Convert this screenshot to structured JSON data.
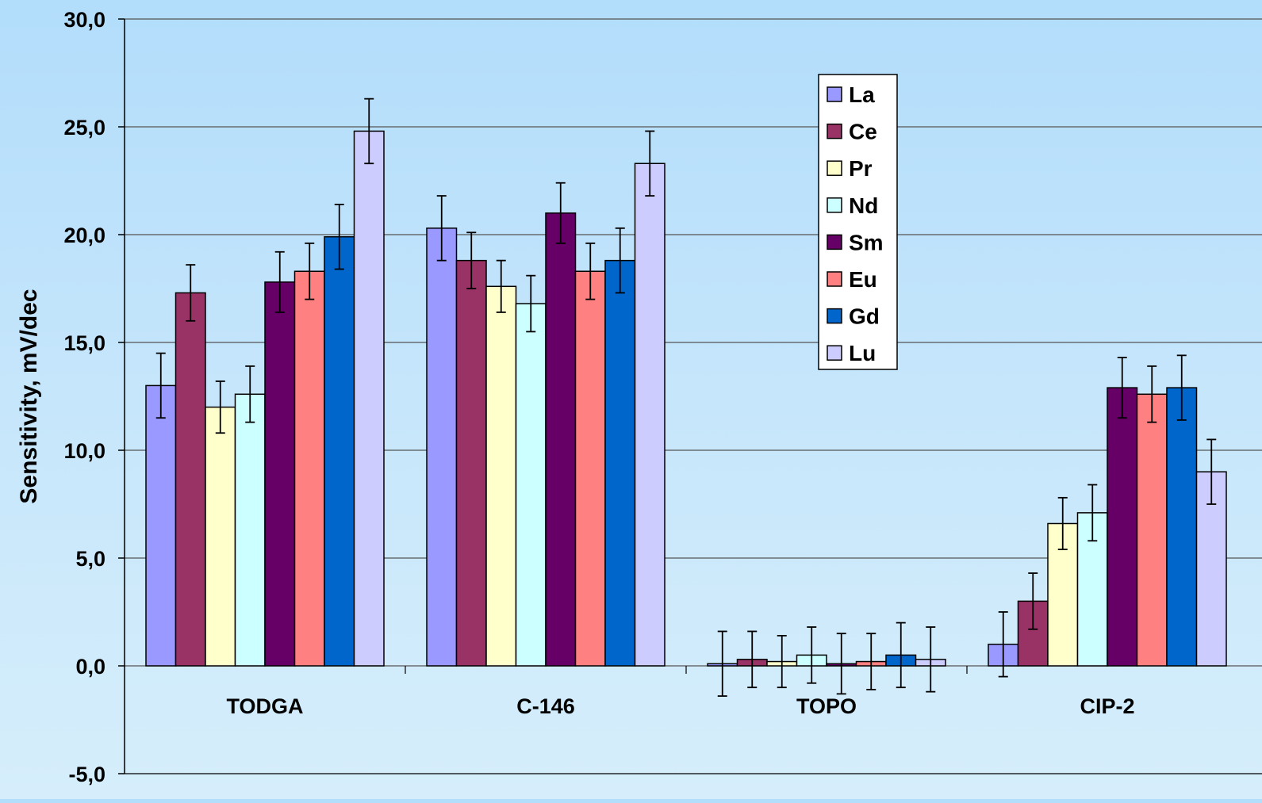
{
  "chart_data": {
    "type": "bar",
    "title": "",
    "xlabel": "",
    "ylabel": "Sensitivity, mV/dec",
    "ylim": [
      -5,
      30
    ],
    "yticks": [
      -5,
      0,
      5,
      10,
      15,
      20,
      25,
      30
    ],
    "ytick_labels": [
      "-5,0",
      "0,0",
      "5,0",
      "10,0",
      "15,0",
      "20,0",
      "25,0",
      "30,0"
    ],
    "grid": "horizontal major gridlines",
    "legend_position": "inside, upper center-right",
    "categories": [
      "TODGA",
      "C-146",
      "TOPO",
      "CIP-2"
    ],
    "series": [
      {
        "name": "La",
        "color": "#9999ff",
        "values": [
          13.0,
          20.3,
          0.1,
          1.0
        ],
        "errors": [
          1.5,
          1.5,
          1.5,
          1.5
        ]
      },
      {
        "name": "Ce",
        "color": "#993366",
        "values": [
          17.3,
          18.8,
          0.3,
          3.0
        ],
        "errors": [
          1.3,
          1.3,
          1.3,
          1.3
        ]
      },
      {
        "name": "Pr",
        "color": "#ffffcc",
        "values": [
          12.0,
          17.6,
          0.2,
          6.6
        ],
        "errors": [
          1.2,
          1.2,
          1.2,
          1.2
        ]
      },
      {
        "name": "Nd",
        "color": "#ccffff",
        "values": [
          12.6,
          16.8,
          0.5,
          7.1
        ],
        "errors": [
          1.3,
          1.3,
          1.3,
          1.3
        ]
      },
      {
        "name": "Sm",
        "color": "#660066",
        "values": [
          17.8,
          21.0,
          0.1,
          12.9
        ],
        "errors": [
          1.4,
          1.4,
          1.4,
          1.4
        ]
      },
      {
        "name": "Eu",
        "color": "#ff8080",
        "values": [
          18.3,
          18.3,
          0.2,
          12.6
        ],
        "errors": [
          1.3,
          1.3,
          1.3,
          1.3
        ]
      },
      {
        "name": "Gd",
        "color": "#0066cc",
        "values": [
          19.9,
          18.8,
          0.5,
          12.9
        ],
        "errors": [
          1.5,
          1.5,
          1.5,
          1.5
        ]
      },
      {
        "name": "Lu",
        "color": "#ccccff",
        "values": [
          24.8,
          23.3,
          0.3,
          9.0
        ],
        "errors": [
          1.5,
          1.5,
          1.5,
          1.5
        ]
      }
    ]
  }
}
